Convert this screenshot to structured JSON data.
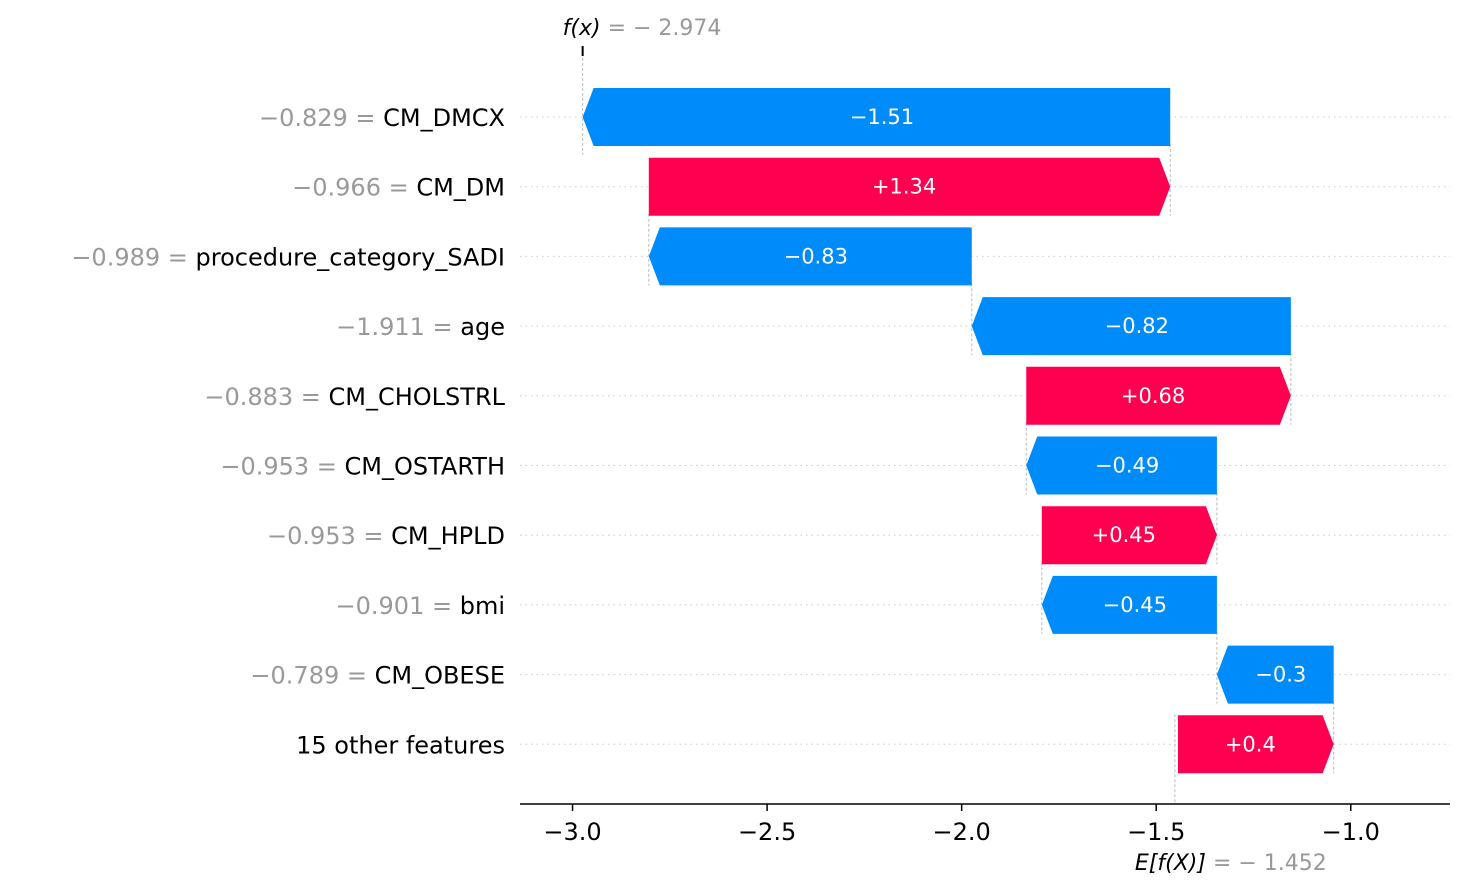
{
  "chart_data": {
    "type": "waterfall",
    "fx": {
      "label": "f(x)",
      "value_text": "= − 2.974",
      "value": -2.974
    },
    "base": {
      "label": "E[f(X)]",
      "value_text": "= − 1.452",
      "value": -1.452
    },
    "features": [
      {
        "name": "CM_DMCX",
        "feature_value": "−0.829",
        "contribution": -1.51,
        "label": "−1.51"
      },
      {
        "name": "CM_DM",
        "feature_value": "−0.966",
        "contribution": 1.34,
        "label": "+1.34"
      },
      {
        "name": "procedure_category_SADI",
        "feature_value": "−0.989",
        "contribution": -0.83,
        "label": "−0.83"
      },
      {
        "name": "age",
        "feature_value": "−1.911",
        "contribution": -0.82,
        "label": "−0.82"
      },
      {
        "name": "CM_CHOLSTRL",
        "feature_value": "−0.883",
        "contribution": 0.68,
        "label": "+0.68"
      },
      {
        "name": "CM_OSTARTH",
        "feature_value": "−0.953",
        "contribution": -0.49,
        "label": "−0.49"
      },
      {
        "name": "CM_HPLD",
        "feature_value": "−0.953",
        "contribution": 0.45,
        "label": "+0.45"
      },
      {
        "name": "bmi",
        "feature_value": "−0.901",
        "contribution": -0.45,
        "label": "−0.45"
      },
      {
        "name": "CM_OBESE",
        "feature_value": "−0.789",
        "contribution": -0.3,
        "label": "−0.3"
      },
      {
        "name": "15 other features",
        "feature_value": "",
        "contribution": 0.4,
        "label": "+0.4"
      }
    ],
    "xticks": [
      {
        "value": -3.0,
        "label": "−3.0"
      },
      {
        "value": -2.5,
        "label": "−2.5"
      },
      {
        "value": -2.0,
        "label": "−2.0"
      },
      {
        "value": -1.5,
        "label": "−1.5"
      },
      {
        "value": -1.0,
        "label": "−1.0"
      }
    ],
    "xlim": [
      -3.135,
      -0.745
    ],
    "colors": {
      "positive": "#ff0051",
      "negative": "#008bfb",
      "muted": "#999999",
      "grid": "#cccccc"
    }
  }
}
